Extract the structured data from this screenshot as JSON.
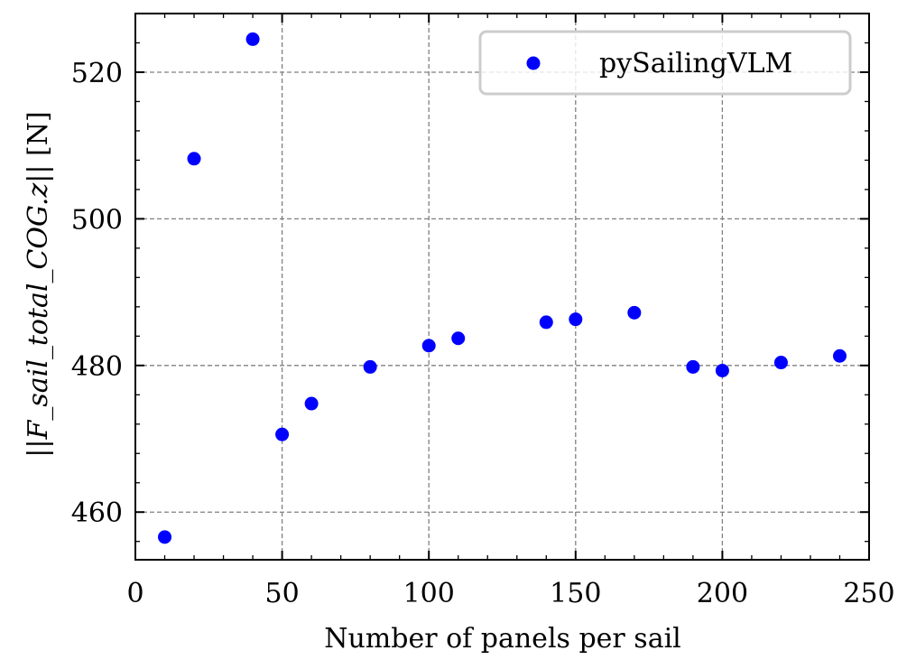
{
  "chart_data": {
    "type": "scatter",
    "title": "",
    "xlabel": "Number of panels per sail",
    "ylabel": "||F_sail_total_COG.z|| [N]",
    "ylabel_parts": {
      "open": "||",
      "math": "F_sail_total_COG.z",
      "close": "|| [N]"
    },
    "xlim": [
      0,
      250
    ],
    "ylim": [
      453.5,
      528
    ],
    "xticks": [
      0,
      50,
      100,
      150,
      200,
      250
    ],
    "yticks": [
      460,
      480,
      500,
      520
    ],
    "xminor_step": 10,
    "yminor_step": 4,
    "grid": true,
    "legend_placement": "upper-right",
    "series": [
      {
        "name": "pySailingVLM",
        "color": "#0000ff",
        "x": [
          10,
          20,
          40,
          50,
          60,
          80,
          100,
          110,
          140,
          150,
          170,
          190,
          200,
          220,
          240
        ],
        "y": [
          456.6,
          508.2,
          524.5,
          470.6,
          474.8,
          479.8,
          482.7,
          483.7,
          485.9,
          486.3,
          487.2,
          479.8,
          479.3,
          480.4,
          481.3
        ]
      }
    ]
  }
}
